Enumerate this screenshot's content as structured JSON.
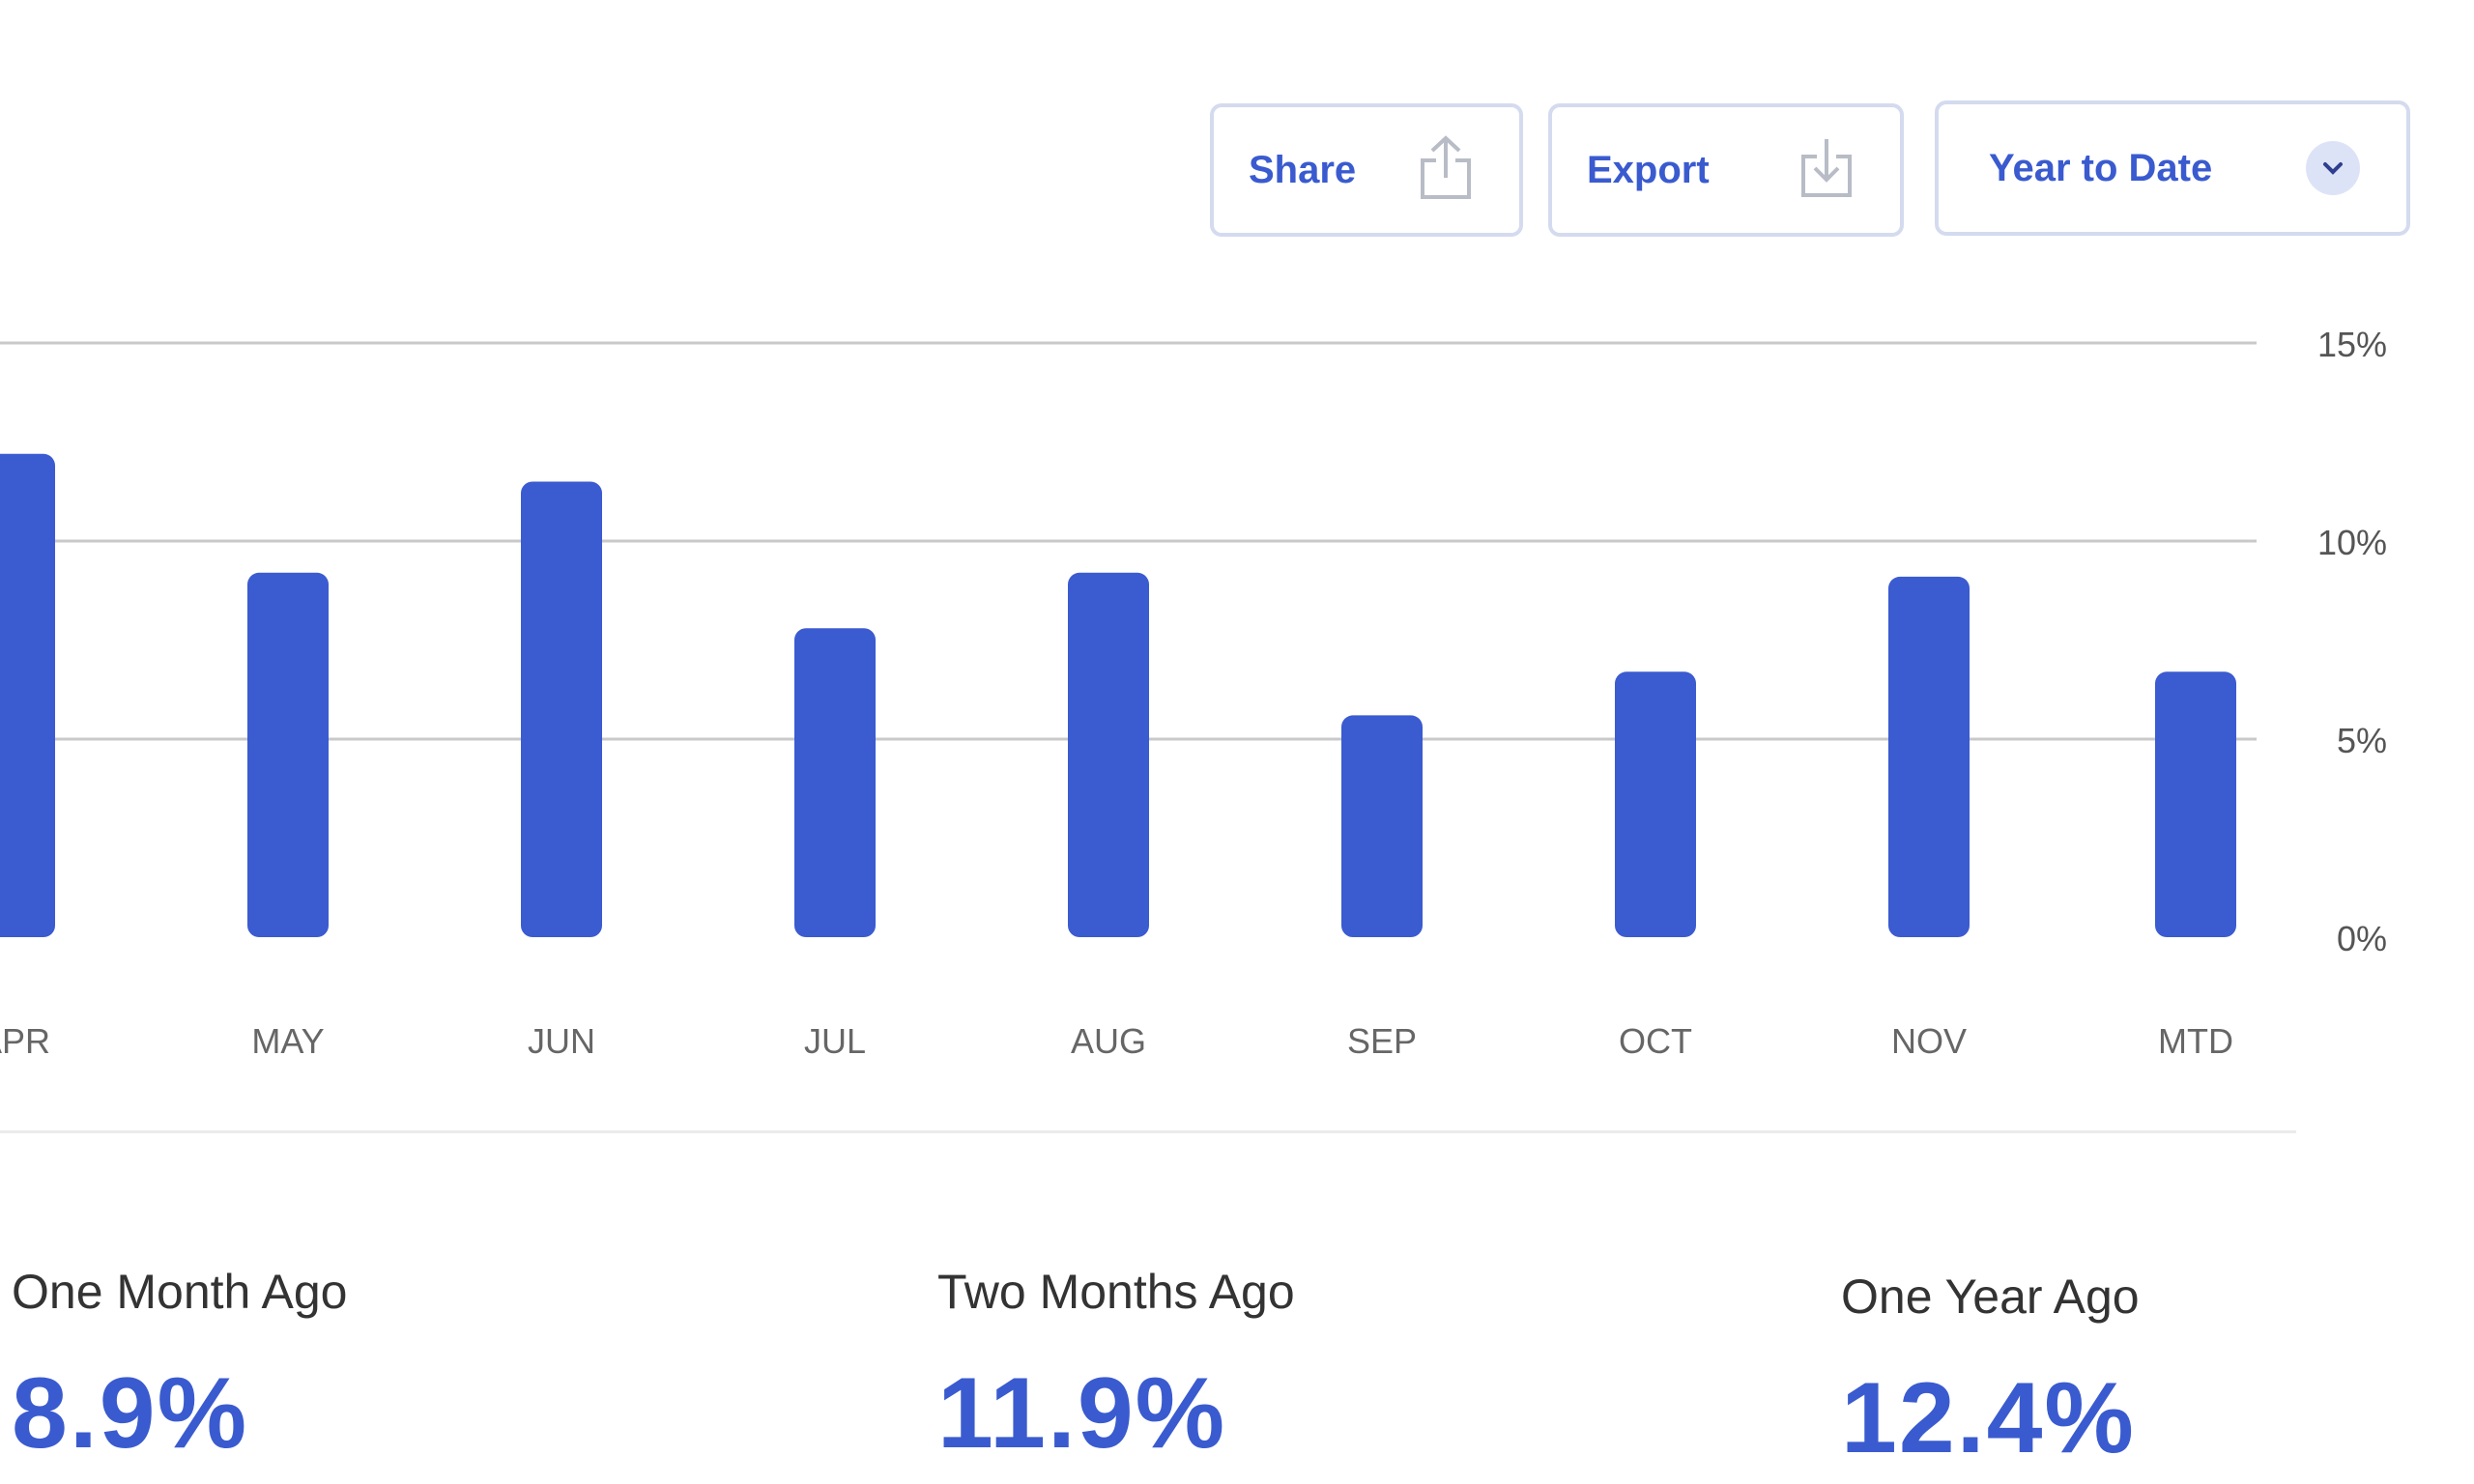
{
  "toolbar": {
    "share_label": "Share",
    "share_icon": "share-icon",
    "export_label": "Export",
    "export_icon": "download-icon",
    "period_label": "Year to Date",
    "period_icon": "chevron-down-icon"
  },
  "chart_data": {
    "type": "bar",
    "categories": [
      "APR",
      "MAY",
      "JUN",
      "JUL",
      "AUG",
      "SEP",
      "OCT",
      "NOV",
      "MTD"
    ],
    "values": [
      12.2,
      9.2,
      11.5,
      7.8,
      9.2,
      5.6,
      6.7,
      9.1,
      6.7
    ],
    "ylim": [
      0,
      15
    ],
    "yticks": [
      "0%",
      "5%",
      "10%",
      "15%"
    ],
    "ytick_values": [
      0,
      5,
      10,
      15
    ],
    "y_axis_side": "right",
    "grid": true,
    "bar_color": "#3b5bd0",
    "title": "",
    "xlabel": "",
    "ylabel": ""
  },
  "stats": [
    {
      "label": "One Month Ago",
      "value": "8.9%"
    },
    {
      "label": "Two Months Ago",
      "value": "11.9%"
    },
    {
      "label": "One Year Ago",
      "value": "12.4%"
    }
  ]
}
